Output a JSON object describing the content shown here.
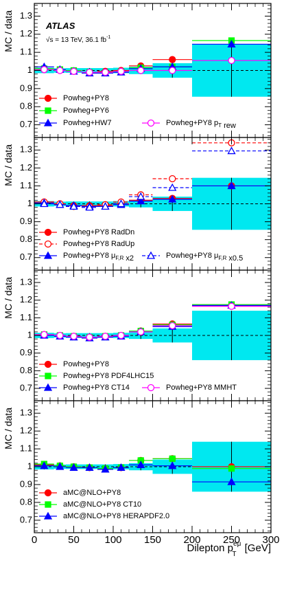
{
  "header": {
    "experiment": "ATLAS",
    "energy_prefix": "√s = 13 TeV, 36.1 fb",
    "energy_sup": "-1"
  },
  "axes": {
    "ylabel": "MC / data",
    "xlabel_main": "Dilepton p",
    "xlabel_sup": "eμ",
    "xlabel_sub": "T",
    "xlabel_unit": " [GeV]"
  },
  "chart_data": [
    {
      "type": "scatter",
      "panel": 1,
      "x_bins": [
        [
          0,
          25
        ],
        [
          25,
          40
        ],
        [
          40,
          60
        ],
        [
          60,
          80
        ],
        [
          80,
          100
        ],
        [
          100,
          120
        ],
        [
          120,
          150
        ],
        [
          150,
          200
        ],
        [
          200,
          300
        ]
      ],
      "xlim": [
        0,
        300
      ],
      "ylim": [
        0.63,
        1.37
      ],
      "yticks": [
        0.7,
        0.8,
        0.9,
        1,
        1.1,
        1.2,
        1.3
      ],
      "xticks": [
        0,
        50,
        100,
        150,
        200,
        250,
        300
      ],
      "data_unc": [
        0.015,
        0.012,
        0.013,
        0.013,
        0.013,
        0.015,
        0.02,
        0.04,
        0.145
      ],
      "series": [
        {
          "name": "Powheg+PY8",
          "color": "#ff0000",
          "marker": "circle",
          "filled": true,
          "dashed": false,
          "values": [
            1.005,
            1.0,
            0.995,
            0.99,
            0.995,
            1.0,
            1.025,
            1.06,
            null
          ]
        },
        {
          "name": "Powheg+PY6",
          "color": "#00ff00",
          "marker": "square",
          "filled": true,
          "dashed": false,
          "values": [
            1.01,
            1.005,
            1.0,
            0.99,
            0.99,
            0.995,
            1.015,
            1.02,
            1.165
          ]
        },
        {
          "name": "Powheg+HW7",
          "color": "#0000ff",
          "marker": "triangle",
          "filled": true,
          "dashed": false,
          "values": [
            1.02,
            1.005,
            0.995,
            0.985,
            0.985,
            0.99,
            1.01,
            1.02,
            1.145
          ]
        },
        {
          "name": "Powheg+PY8 p_T rew",
          "color": "#ff00ff",
          "marker": "circle",
          "filled": false,
          "dashed": false,
          "values": [
            1.005,
            1.0,
            0.995,
            0.99,
            0.99,
            0.995,
            1.0,
            1.0,
            1.055
          ]
        }
      ]
    },
    {
      "type": "scatter",
      "panel": 2,
      "x_bins": [
        [
          0,
          25
        ],
        [
          25,
          40
        ],
        [
          40,
          60
        ],
        [
          60,
          80
        ],
        [
          80,
          100
        ],
        [
          100,
          120
        ],
        [
          120,
          150
        ],
        [
          150,
          200
        ],
        [
          200,
          300
        ]
      ],
      "xlim": [
        0,
        300
      ],
      "ylim": [
        0.63,
        1.37
      ],
      "yticks": [
        0.7,
        0.8,
        0.9,
        1,
        1.1,
        1.2,
        1.3
      ],
      "xticks": [
        0,
        50,
        100,
        150,
        200,
        250,
        300
      ],
      "data_unc": [
        0.015,
        0.012,
        0.013,
        0.013,
        0.013,
        0.015,
        0.02,
        0.04,
        0.145
      ],
      "series": [
        {
          "name": "Powheg+PY8 RadDn",
          "color": "#ff0000",
          "marker": "circle",
          "filled": true,
          "dashed": false,
          "values": [
            1.01,
            1.0,
            0.99,
            0.99,
            0.99,
            1.0,
            1.02,
            1.03,
            1.1
          ]
        },
        {
          "name": "Powheg+PY8 RadUp",
          "color": "#ff0000",
          "marker": "circle",
          "filled": false,
          "dashed": true,
          "values": [
            1.01,
            1.0,
            0.985,
            0.985,
            0.995,
            1.01,
            1.05,
            1.14,
            1.34
          ]
        },
        {
          "name": "Powheg+PY8 μ_F,R x2",
          "color": "#0000ff",
          "marker": "triangle",
          "filled": true,
          "dashed": false,
          "values": [
            1.005,
            0.995,
            0.99,
            0.985,
            0.985,
            0.995,
            1.015,
            1.025,
            1.1
          ]
        },
        {
          "name": "Powheg+PY8 μ_F,R x0.5",
          "color": "#0000ff",
          "marker": "triangle",
          "filled": false,
          "dashed": true,
          "values": [
            1.0,
            0.995,
            0.985,
            0.98,
            0.985,
            1.0,
            1.04,
            1.09,
            1.295
          ]
        }
      ]
    },
    {
      "type": "scatter",
      "panel": 3,
      "x_bins": [
        [
          0,
          25
        ],
        [
          25,
          40
        ],
        [
          40,
          60
        ],
        [
          60,
          80
        ],
        [
          80,
          100
        ],
        [
          100,
          120
        ],
        [
          120,
          150
        ],
        [
          150,
          200
        ],
        [
          200,
          300
        ]
      ],
      "xlim": [
        0,
        300
      ],
      "ylim": [
        0.63,
        1.37
      ],
      "yticks": [
        0.7,
        0.8,
        0.9,
        1,
        1.1,
        1.2,
        1.3
      ],
      "xticks": [
        0,
        50,
        100,
        150,
        200,
        250,
        300
      ],
      "data_unc": [
        0.015,
        0.012,
        0.013,
        0.013,
        0.013,
        0.015,
        0.02,
        0.04,
        0.14
      ],
      "series": [
        {
          "name": "Powheg+PY8",
          "color": "#ff0000",
          "marker": "circle",
          "filled": true,
          "dashed": false,
          "values": [
            1.005,
            1.0,
            0.995,
            0.99,
            0.995,
            1.0,
            1.025,
            1.065,
            1.17
          ]
        },
        {
          "name": "Powheg+PY8 PDF4LHC15",
          "color": "#00ff00",
          "marker": "square",
          "filled": true,
          "dashed": false,
          "values": [
            1.005,
            1.0,
            0.995,
            0.99,
            0.995,
            1.0,
            1.025,
            1.06,
            1.175
          ]
        },
        {
          "name": "Powheg+PY8 CT14",
          "color": "#0000ff",
          "marker": "triangle",
          "filled": true,
          "dashed": false,
          "values": [
            1.0,
            0.995,
            0.99,
            0.985,
            0.99,
            0.995,
            1.02,
            1.05,
            1.17
          ]
        },
        {
          "name": "Powheg+PY8 MMHT",
          "color": "#ff00ff",
          "marker": "circle",
          "filled": false,
          "dashed": false,
          "values": [
            1.005,
            1.0,
            0.995,
            0.99,
            0.995,
            1.0,
            1.02,
            1.055,
            1.165
          ]
        }
      ]
    },
    {
      "type": "scatter",
      "panel": 4,
      "x_bins": [
        [
          0,
          25
        ],
        [
          25,
          40
        ],
        [
          40,
          60
        ],
        [
          60,
          80
        ],
        [
          80,
          100
        ],
        [
          100,
          120
        ],
        [
          120,
          150
        ],
        [
          150,
          200
        ],
        [
          200,
          300
        ]
      ],
      "xlim": [
        0,
        300
      ],
      "ylim": [
        0.63,
        1.37
      ],
      "yticks": [
        0.7,
        0.8,
        0.9,
        1,
        1.1,
        1.2,
        1.3
      ],
      "xticks": [
        0,
        50,
        100,
        150,
        200,
        250,
        300
      ],
      "data_unc": [
        0.015,
        0.012,
        0.013,
        0.013,
        0.013,
        0.015,
        0.02,
        0.04,
        0.14
      ],
      "series": [
        {
          "name": "aMC@NLO+PY8",
          "color": "#ff0000",
          "marker": "circle",
          "filled": true,
          "dashed": false,
          "values": [
            1.01,
            1.005,
            1.0,
            0.995,
            0.99,
            0.995,
            1.035,
            1.045,
            1.0
          ]
        },
        {
          "name": "aMC@NLO+PY8 CT10",
          "color": "#00ff00",
          "marker": "square",
          "filled": true,
          "dashed": false,
          "values": [
            1.015,
            1.005,
            1.0,
            0.995,
            0.99,
            0.995,
            1.035,
            1.045,
            0.99
          ]
        },
        {
          "name": "aMC@NLO+PY8 HERAPDF2.0",
          "color": "#0000ff",
          "marker": "triangle",
          "filled": true,
          "dashed": false,
          "values": [
            1.005,
            1.0,
            0.995,
            0.995,
            0.985,
            0.995,
            1.01,
            1.005,
            0.915
          ]
        }
      ]
    }
  ]
}
